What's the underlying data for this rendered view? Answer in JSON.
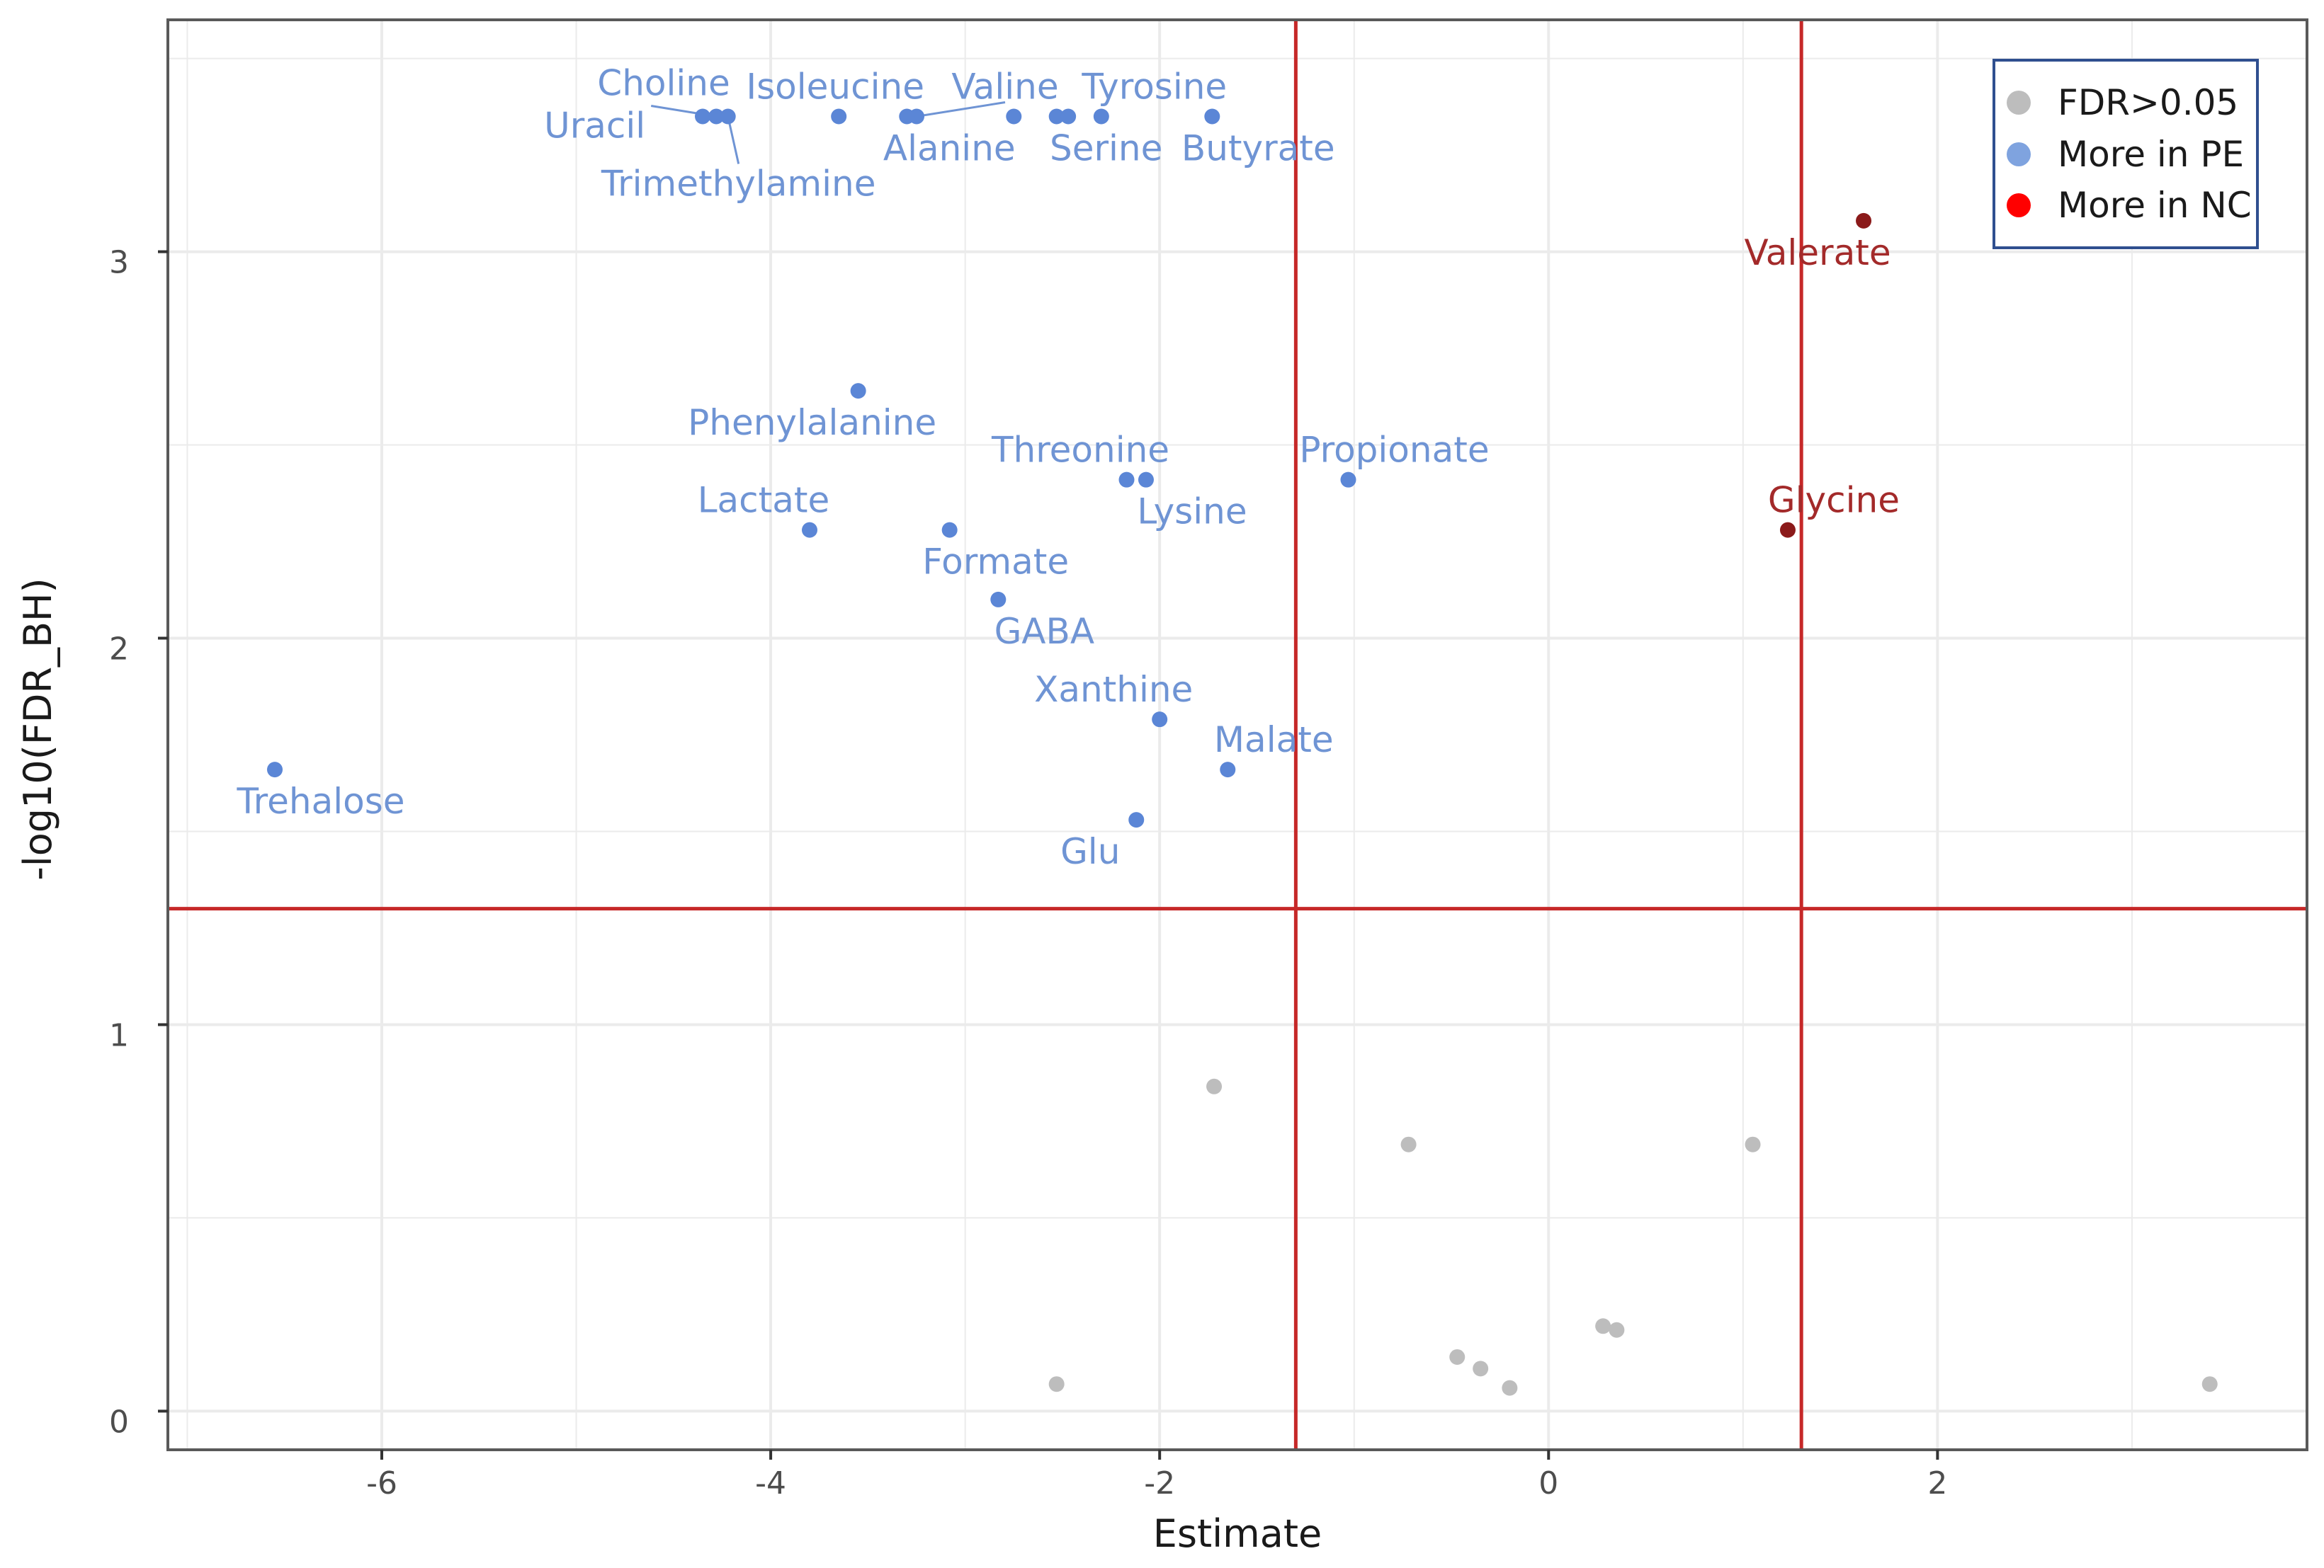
{
  "chart_data": {
    "type": "scatter",
    "title": "",
    "xlabel": "Estimate",
    "ylabel": "-log10(FDR_BH)",
    "xlim": [
      -7.1,
      3.9
    ],
    "ylim": [
      -0.1,
      3.6
    ],
    "x_ticks": [
      -6,
      -4,
      -2,
      0,
      2
    ],
    "y_ticks": [
      0,
      1,
      2,
      3
    ],
    "x_tick_labels": [
      "-6",
      "-4",
      "-2",
      "0",
      "2"
    ],
    "y_tick_labels": [
      "0",
      "1",
      "2",
      "3"
    ],
    "grid": true,
    "thresholds": {
      "vertical": [
        -1.3,
        1.3
      ],
      "horizontal": 1.3,
      "color": "#c62828"
    },
    "legend": {
      "position": "top-right",
      "entries": [
        {
          "label": "FDR>0.05",
          "color": "#bdbdbd"
        },
        {
          "label": "More in PE",
          "color": "#7fa3df"
        },
        {
          "label": "More in NC",
          "color": "#ff0000"
        }
      ]
    },
    "colors": {
      "pe_point": "#5b86d6",
      "pe_label": "#6f94d4",
      "nc_point": "#8b1a1a",
      "nc_label": "#a32a2a",
      "ns_point": "#bdbdbd"
    },
    "series": [
      {
        "name": "More in PE",
        "points": [
          {
            "label": "Choline",
            "x": -4.35,
            "y": 3.35
          },
          {
            "label": "Uracil",
            "x": -4.28,
            "y": 3.35
          },
          {
            "label": "Trimethylamine",
            "x": -4.22,
            "y": 3.35
          },
          {
            "label": "Isoleucine",
            "x": -3.65,
            "y": 3.35
          },
          {
            "label": "Valine",
            "x": -3.25,
            "y": 3.35
          },
          {
            "label": "Alanine",
            "x": -3.3,
            "y": 3.35
          },
          {
            "label": "",
            "x": -2.75,
            "y": 3.35
          },
          {
            "label": "Serine",
            "x": -2.53,
            "y": 3.35
          },
          {
            "label": "",
            "x": -2.47,
            "y": 3.35
          },
          {
            "label": "Tyrosine",
            "x": -2.3,
            "y": 3.35
          },
          {
            "label": "Butyrate",
            "x": -1.73,
            "y": 3.35
          },
          {
            "label": "Phenylalanine",
            "x": -3.55,
            "y": 2.64
          },
          {
            "label": "Threonine",
            "x": -2.17,
            "y": 2.41
          },
          {
            "label": "Lysine",
            "x": -2.07,
            "y": 2.41
          },
          {
            "label": "Propionate",
            "x": -1.03,
            "y": 2.41
          },
          {
            "label": "Lactate",
            "x": -3.8,
            "y": 2.28
          },
          {
            "label": "Formate",
            "x": -3.08,
            "y": 2.28
          },
          {
            "label": "GABA",
            "x": -2.83,
            "y": 2.1
          },
          {
            "label": "Xanthine",
            "x": -2.0,
            "y": 1.79
          },
          {
            "label": "Malate",
            "x": -1.65,
            "y": 1.66
          },
          {
            "label": "Trehalose",
            "x": -6.55,
            "y": 1.66
          },
          {
            "label": "Glu",
            "x": -2.12,
            "y": 1.53
          }
        ]
      },
      {
        "name": "More in NC",
        "points": [
          {
            "label": "Valerate",
            "x": 1.62,
            "y": 3.08
          },
          {
            "label": "Glycine",
            "x": 1.23,
            "y": 2.28
          }
        ]
      },
      {
        "name": "FDR>0.05",
        "points": [
          {
            "label": "",
            "x": -1.72,
            "y": 0.84
          },
          {
            "label": "",
            "x": -0.72,
            "y": 0.69
          },
          {
            "label": "",
            "x": 1.05,
            "y": 0.69
          },
          {
            "label": "",
            "x": 0.28,
            "y": 0.22
          },
          {
            "label": "",
            "x": 0.35,
            "y": 0.21
          },
          {
            "label": "",
            "x": -0.47,
            "y": 0.14
          },
          {
            "label": "",
            "x": -0.35,
            "y": 0.11
          },
          {
            "label": "",
            "x": -0.2,
            "y": 0.06
          },
          {
            "label": "",
            "x": -2.53,
            "y": 0.07
          },
          {
            "label": "",
            "x": 3.4,
            "y": 0.07
          }
        ]
      }
    ]
  }
}
